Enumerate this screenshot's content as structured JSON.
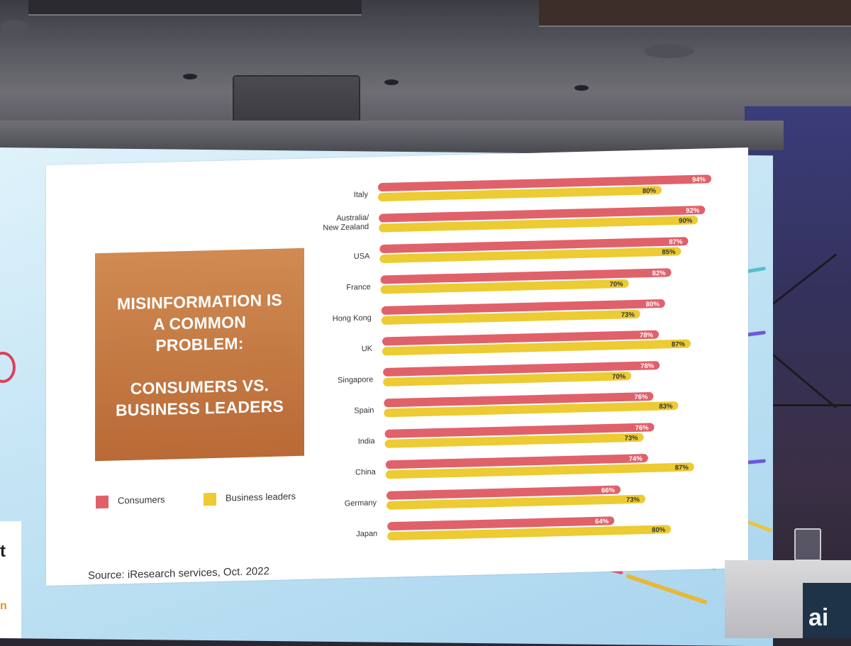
{
  "slide": {
    "title_lines_1": [
      "MISINFORMATION IS",
      "A COMMON",
      "PROBLEM:"
    ],
    "title_lines_2": [
      "CONSUMERS VS.",
      "BUSINESS LEADERS"
    ],
    "source": "Source: iResearch services, Oct. 2022"
  },
  "room": {
    "left_edge_glyph_1": "t",
    "left_edge_glyph_2": "n",
    "podium_sign": "ai"
  },
  "colors": {
    "consumers": "#e0616a",
    "business_leaders": "#eccb33",
    "title_box": "#c67a44"
  },
  "chart_data": {
    "type": "bar",
    "orientation": "horizontal",
    "categories": [
      "Italy",
      "Australia/\nNew Zealand",
      "USA",
      "France",
      "Hong Kong",
      "UK",
      "Singapore",
      "Spain",
      "India",
      "China",
      "Germany",
      "Japan"
    ],
    "series": [
      {
        "name": "Consumers",
        "values": [
          94,
          92,
          87,
          82,
          80,
          78,
          78,
          76,
          76,
          74,
          66,
          64
        ],
        "labels": [
          "94%",
          "92%",
          "87%",
          "82%",
          "80%",
          "78%",
          "78%",
          "76%",
          "76%",
          "74%",
          "66%",
          "64%"
        ]
      },
      {
        "name": "Business leaders",
        "values": [
          80,
          90,
          85,
          70,
          73,
          87,
          70,
          83,
          73,
          87,
          73,
          80
        ],
        "labels": [
          "80%",
          "90%",
          "85%",
          "70%",
          "73%",
          "87%",
          "70%",
          "83%",
          "73%",
          "87%",
          "73%",
          "80%"
        ]
      }
    ],
    "legend": "bottom-left",
    "grid": false
  }
}
